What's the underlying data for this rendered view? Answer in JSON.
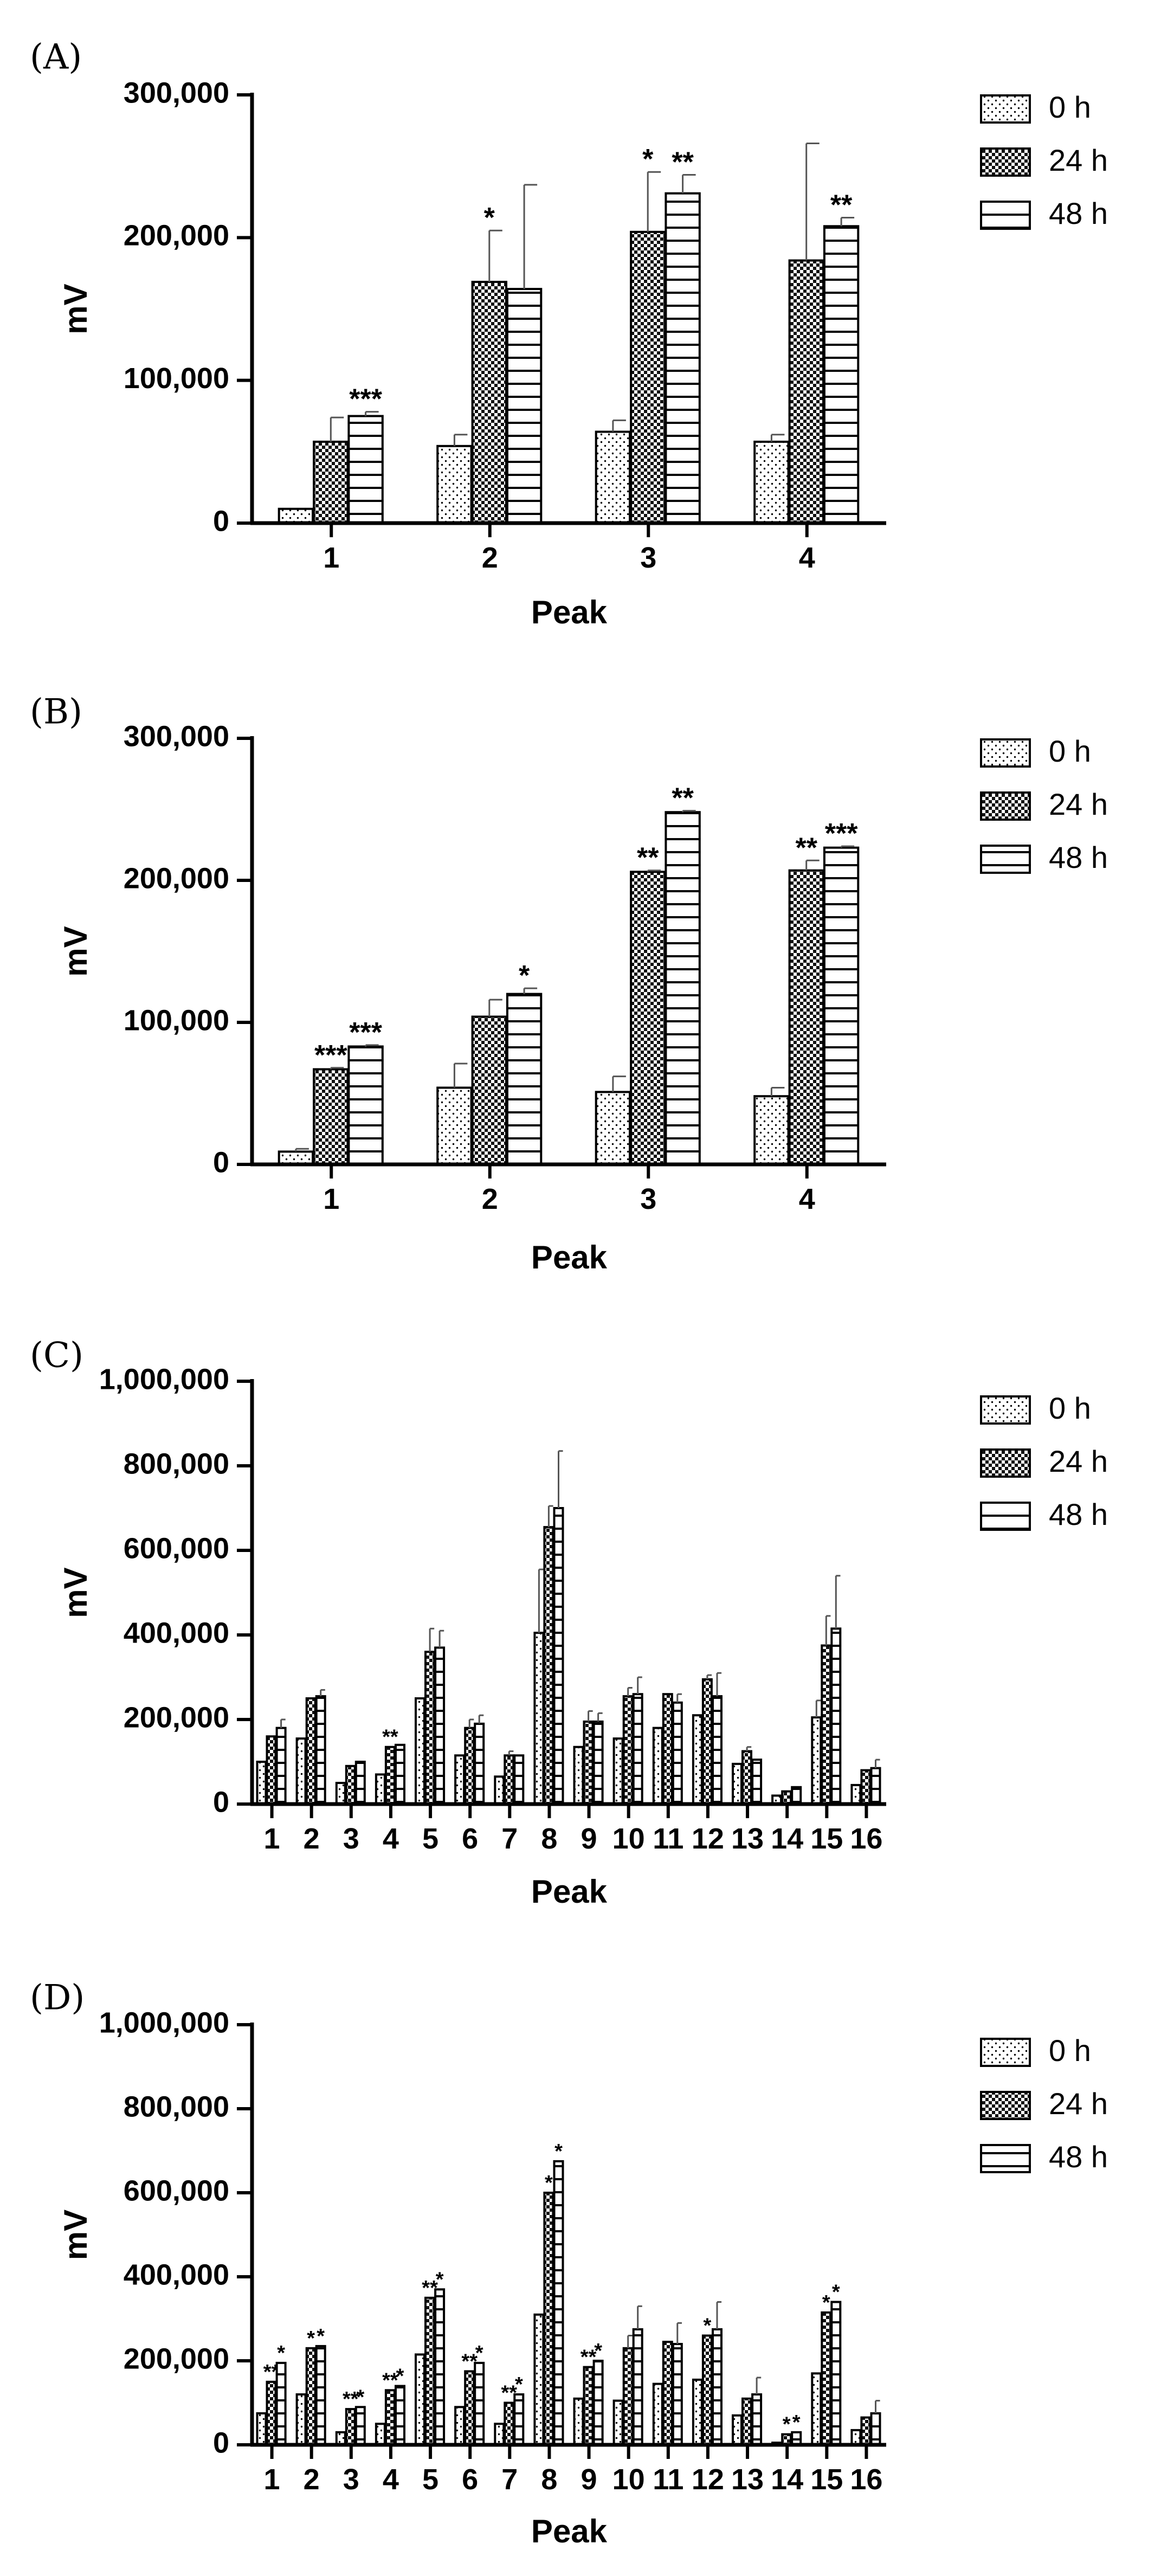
{
  "chart_data": [
    {
      "type": "bar",
      "panel_label": "(A)",
      "ylabel": "mV",
      "xlabel": "Peak",
      "ylim": [
        0,
        300000
      ],
      "yticks": [
        0,
        100000,
        200000,
        300000
      ],
      "ytick_labels": [
        "0",
        "100,000",
        "200,000",
        "300,000"
      ],
      "categories": [
        "1",
        "2",
        "3",
        "4"
      ],
      "legend": {
        "position": "top-right",
        "entries": [
          "0 h",
          "24 h",
          "48 h"
        ]
      },
      "series": [
        {
          "name": "0 h",
          "pattern": "dots",
          "values": [
            10000,
            54000,
            64000,
            57000
          ],
          "errors": [
            0,
            8000,
            8000,
            5000
          ],
          "sig": [
            "",
            "",
            "",
            ""
          ]
        },
        {
          "name": "24 h",
          "pattern": "checker",
          "values": [
            57000,
            169000,
            204000,
            184000
          ],
          "errors": [
            17000,
            36000,
            42000,
            82000
          ],
          "sig": [
            "",
            "*",
            "*",
            ""
          ]
        },
        {
          "name": "48 h",
          "pattern": "hlines",
          "values": [
            75000,
            164000,
            231000,
            208000
          ],
          "errors": [
            3000,
            73000,
            13000,
            6000
          ],
          "sig": [
            "***",
            "",
            "**",
            "**"
          ]
        }
      ]
    },
    {
      "type": "bar",
      "panel_label": "(B)",
      "ylabel": "mV",
      "xlabel": "Peak",
      "ylim": [
        0,
        300000
      ],
      "yticks": [
        0,
        100000,
        200000,
        300000
      ],
      "ytick_labels": [
        "0",
        "100,000",
        "200,000",
        "300,000"
      ],
      "categories": [
        "1",
        "2",
        "3",
        "4"
      ],
      "legend": {
        "position": "top-right",
        "entries": [
          "0 h",
          "24 h",
          "48 h"
        ]
      },
      "series": [
        {
          "name": "0 h",
          "pattern": "dots",
          "values": [
            9000,
            54000,
            51000,
            48000
          ],
          "errors": [
            2000,
            17000,
            11000,
            6000
          ],
          "sig": [
            "",
            "",
            "",
            ""
          ]
        },
        {
          "name": "24 h",
          "pattern": "checker",
          "values": [
            67000,
            104000,
            206000,
            207000
          ],
          "errors": [
            1000,
            12000,
            1000,
            7000
          ],
          "sig": [
            "***",
            "",
            "**",
            "**"
          ]
        },
        {
          "name": "48 h",
          "pattern": "hlines",
          "values": [
            83000,
            120000,
            248000,
            223000
          ],
          "errors": [
            1000,
            4000,
            1000,
            1000
          ],
          "sig": [
            "***",
            "*",
            "**",
            "***"
          ]
        }
      ]
    },
    {
      "type": "bar",
      "panel_label": "(C)",
      "ylabel": "mV",
      "xlabel": "Peak",
      "ylim": [
        0,
        1000000
      ],
      "yticks": [
        0,
        200000,
        400000,
        600000,
        800000,
        1000000
      ],
      "ytick_labels": [
        "0",
        "200,000",
        "400,000",
        "600,000",
        "800,000",
        "1,000,000"
      ],
      "categories": [
        "1",
        "2",
        "3",
        "4",
        "5",
        "6",
        "7",
        "8",
        "9",
        "10",
        "11",
        "12",
        "13",
        "14",
        "15",
        "16"
      ],
      "legend": {
        "position": "top-right",
        "entries": [
          "0 h",
          "24 h",
          "48 h"
        ]
      },
      "series": [
        {
          "name": "0 h",
          "pattern": "dots",
          "values": [
            100000,
            155000,
            50000,
            70000,
            250000,
            115000,
            65000,
            405000,
            135000,
            155000,
            180000,
            210000,
            95000,
            20000,
            205000,
            45000
          ],
          "errors": [
            0,
            0,
            0,
            0,
            0,
            0,
            0,
            150000,
            0,
            0,
            0,
            0,
            0,
            0,
            40000,
            0
          ],
          "sig": [
            "",
            "",
            "",
            "",
            "",
            "",
            "",
            "",
            "",
            "",
            "",
            "",
            "",
            "",
            "",
            ""
          ]
        },
        {
          "name": "24 h",
          "pattern": "checker",
          "values": [
            160000,
            250000,
            90000,
            135000,
            360000,
            180000,
            115000,
            655000,
            195000,
            255000,
            260000,
            295000,
            125000,
            30000,
            375000,
            80000
          ],
          "errors": [
            0,
            0,
            0,
            0,
            55000,
            20000,
            10000,
            50000,
            25000,
            20000,
            0,
            10000,
            10000,
            0,
            70000,
            0
          ],
          "sig": [
            "",
            "",
            "",
            "**",
            "",
            "",
            "",
            "",
            "",
            "",
            "",
            "",
            "",
            "",
            "",
            ""
          ]
        },
        {
          "name": "48 h",
          "pattern": "hlines",
          "values": [
            180000,
            255000,
            100000,
            140000,
            370000,
            190000,
            115000,
            700000,
            195000,
            260000,
            240000,
            255000,
            105000,
            40000,
            415000,
            85000
          ],
          "errors": [
            20000,
            15000,
            0,
            0,
            40000,
            20000,
            0,
            135000,
            20000,
            40000,
            20000,
            55000,
            0,
            0,
            125000,
            20000
          ],
          "sig": [
            "",
            "",
            "",
            "",
            "",
            "",
            "",
            "",
            "",
            "",
            "",
            "",
            "",
            "",
            "",
            ""
          ]
        }
      ]
    },
    {
      "type": "bar",
      "panel_label": "(D)",
      "ylabel": "mV",
      "xlabel": "Peak",
      "ylim": [
        0,
        1000000
      ],
      "yticks": [
        0,
        200000,
        400000,
        600000,
        800000,
        1000000
      ],
      "ytick_labels": [
        "0",
        "200,000",
        "400,000",
        "600,000",
        "800,000",
        "1,000,000"
      ],
      "categories": [
        "1",
        "2",
        "3",
        "4",
        "5",
        "6",
        "7",
        "8",
        "9",
        "10",
        "11",
        "12",
        "13",
        "14",
        "15",
        "16"
      ],
      "legend": {
        "position": "top-right",
        "entries": [
          "0 h",
          "24 h",
          "48 h"
        ]
      },
      "series": [
        {
          "name": "0 h",
          "pattern": "dots",
          "values": [
            75000,
            120000,
            30000,
            50000,
            215000,
            90000,
            50000,
            310000,
            110000,
            105000,
            145000,
            155000,
            70000,
            5000,
            170000,
            35000
          ],
          "errors": [
            0,
            0,
            0,
            0,
            0,
            0,
            0,
            0,
            0,
            0,
            0,
            0,
            0,
            0,
            0,
            0
          ],
          "sig": [
            "",
            "",
            "",
            "",
            "",
            "",
            "",
            "",
            "",
            "",
            "",
            "",
            "",
            "",
            "",
            ""
          ]
        },
        {
          "name": "24 h",
          "pattern": "checker",
          "values": [
            150000,
            230000,
            85000,
            130000,
            350000,
            175000,
            100000,
            600000,
            185000,
            230000,
            245000,
            260000,
            110000,
            25000,
            315000,
            65000
          ],
          "errors": [
            0,
            0,
            0,
            0,
            0,
            0,
            0,
            0,
            0,
            30000,
            0,
            0,
            0,
            0,
            0,
            0
          ],
          "sig": [
            "**",
            "*",
            "**",
            "**",
            "**",
            "**",
            "**",
            "*",
            "**",
            "",
            "",
            "*",
            "",
            "*",
            "*",
            ""
          ]
        },
        {
          "name": "48 h",
          "pattern": "hlines",
          "values": [
            195000,
            235000,
            90000,
            140000,
            370000,
            195000,
            120000,
            675000,
            200000,
            275000,
            240000,
            275000,
            120000,
            30000,
            340000,
            75000
          ],
          "errors": [
            0,
            0,
            0,
            0,
            0,
            0,
            0,
            0,
            0,
            55000,
            50000,
            65000,
            40000,
            0,
            0,
            30000
          ],
          "sig": [
            "*",
            "*",
            "*",
            "*",
            "*",
            "*",
            "*",
            "*",
            "*",
            "",
            "",
            "",
            "",
            "*",
            "*",
            ""
          ]
        }
      ]
    }
  ]
}
